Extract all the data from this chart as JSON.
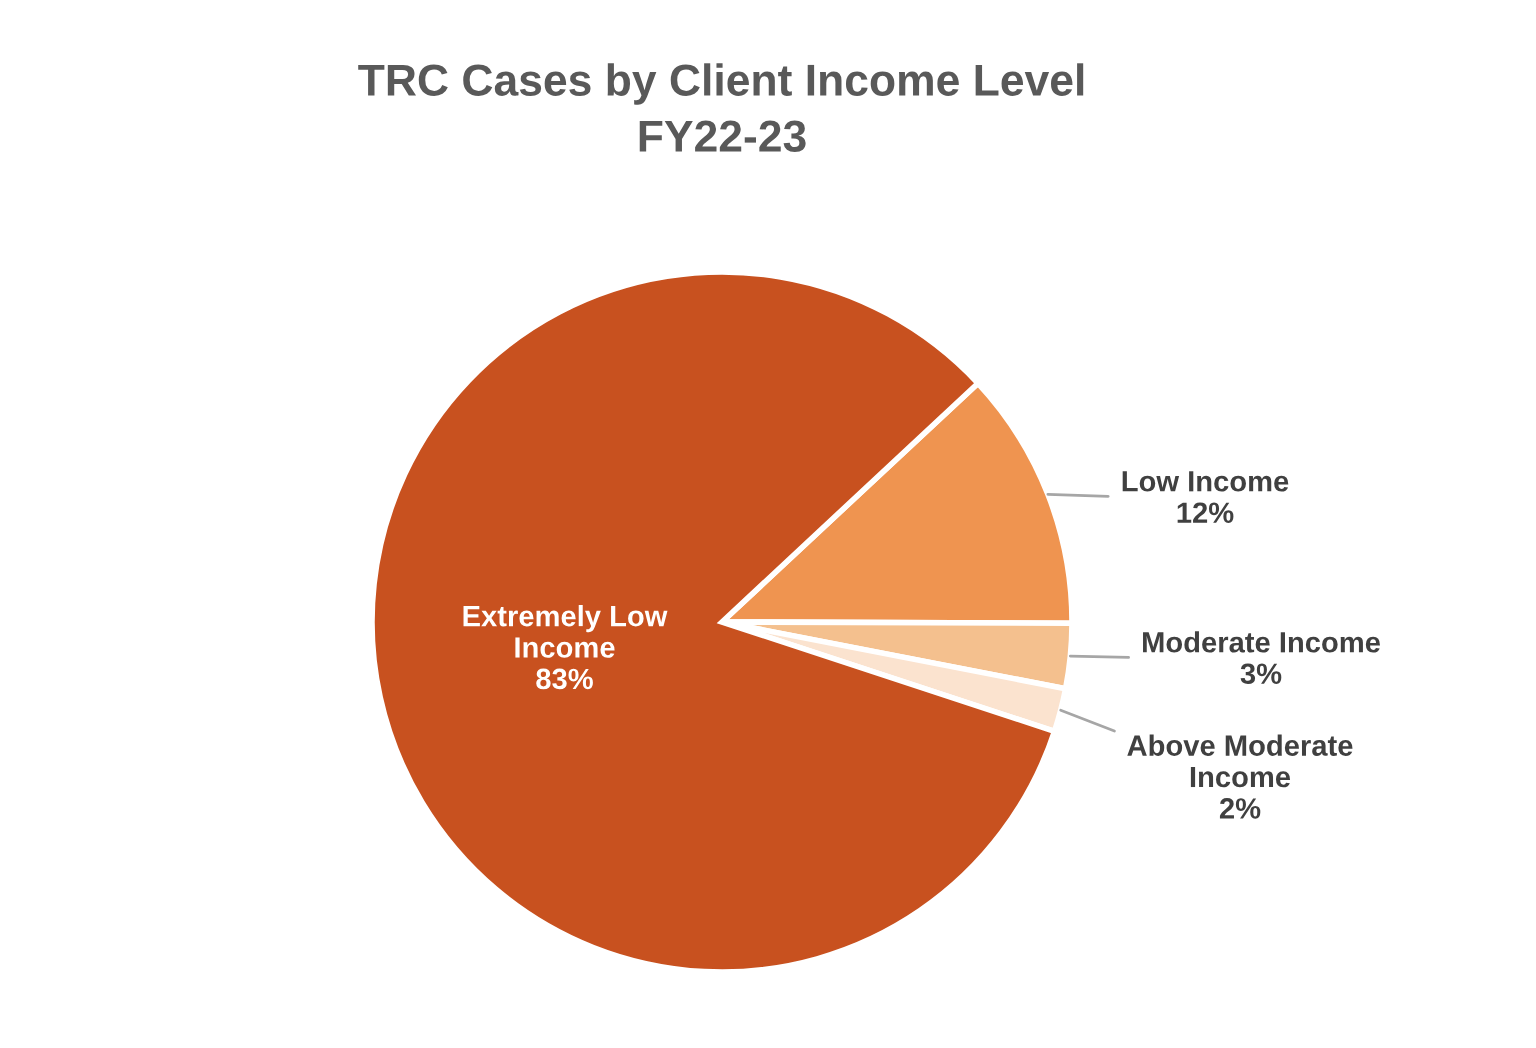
{
  "chart_data": {
    "type": "pie",
    "title": "TRC Cases by Client Income Level",
    "subtitle": "FY22-23",
    "categories": [
      "Low Income",
      "Moderate Income",
      "Above Moderate Income",
      "Extremely Low Income"
    ],
    "values": [
      12,
      3,
      2,
      83
    ],
    "colors": [
      "#ef9450",
      "#f4c08e",
      "#fbe3cf",
      "#c8511f"
    ],
    "value_labels": [
      "12%",
      "3%",
      "2%",
      "83%"
    ]
  }
}
